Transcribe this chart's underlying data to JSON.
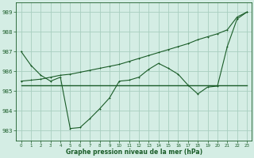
{
  "title": "Graphe pression niveau de la mer (hPa)",
  "bg_color": "#d4ede4",
  "grid_color": "#a8cfc0",
  "line_color": "#1a5c28",
  "ylim": [
    982.5,
    989.5
  ],
  "yticks": [
    983,
    984,
    985,
    986,
    987,
    988,
    989
  ],
  "xlim": [
    -0.5,
    23.5
  ],
  "xticks": [
    0,
    1,
    2,
    3,
    4,
    5,
    6,
    7,
    8,
    9,
    10,
    11,
    12,
    13,
    14,
    15,
    16,
    17,
    18,
    19,
    20,
    21,
    22,
    23
  ],
  "line1_x": [
    0,
    1,
    2,
    3,
    4,
    5,
    6,
    7,
    8,
    9,
    10,
    11,
    12,
    13,
    14,
    15,
    16,
    17,
    18,
    19,
    20,
    21,
    22,
    23
  ],
  "line1_y": [
    987.0,
    986.3,
    985.8,
    985.5,
    985.7,
    983.1,
    983.15,
    983.6,
    984.1,
    984.65,
    985.5,
    985.55,
    985.7,
    986.1,
    986.4,
    986.15,
    985.85,
    985.3,
    984.85,
    985.2,
    985.25,
    987.25,
    988.65,
    989.0
  ],
  "line2_x": [
    0,
    1,
    2,
    3,
    4,
    5,
    6,
    7,
    8,
    9,
    10,
    11,
    12,
    13,
    14,
    15,
    16,
    17,
    18,
    19,
    20,
    21,
    22,
    23
  ],
  "line2_y": [
    985.3,
    985.3,
    985.3,
    985.3,
    985.3,
    985.3,
    985.3,
    985.3,
    985.3,
    985.3,
    985.3,
    985.3,
    985.3,
    985.3,
    985.3,
    985.3,
    985.3,
    985.3,
    985.3,
    985.3,
    985.3,
    985.3,
    985.3,
    985.3
  ],
  "line3_x": [
    0,
    1,
    2,
    3,
    4,
    5,
    6,
    7,
    8,
    9,
    10,
    11,
    12,
    13,
    14,
    15,
    16,
    17,
    18,
    19,
    20,
    21,
    22,
    23
  ],
  "line3_y": [
    985.5,
    985.55,
    985.6,
    985.7,
    985.8,
    985.85,
    985.95,
    986.05,
    986.15,
    986.25,
    986.35,
    986.5,
    986.65,
    986.8,
    986.95,
    987.1,
    987.25,
    987.4,
    987.6,
    987.75,
    987.9,
    988.1,
    988.75,
    989.0
  ]
}
